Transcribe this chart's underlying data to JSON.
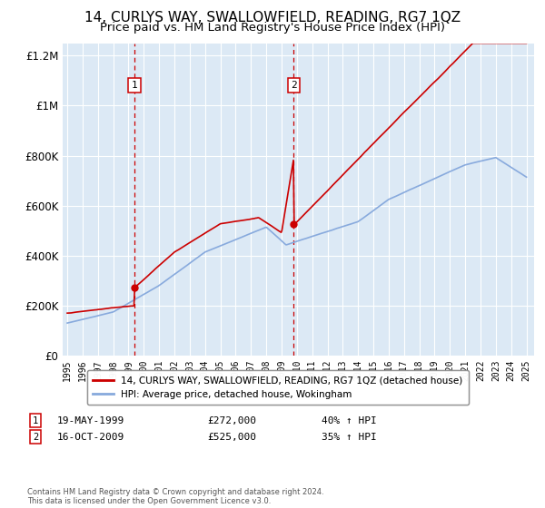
{
  "title": "14, CURLYS WAY, SWALLOWFIELD, READING, RG7 1QZ",
  "subtitle": "Price paid vs. HM Land Registry's House Price Index (HPI)",
  "title_fontsize": 11,
  "subtitle_fontsize": 9.5,
  "background_color": "#ffffff",
  "plot_bg_color": "#dce9f5",
  "grid_color": "#ffffff",
  "ylim": [
    0,
    1250000
  ],
  "yticks": [
    0,
    200000,
    400000,
    600000,
    800000,
    1000000,
    1200000
  ],
  "ytick_labels": [
    "£0",
    "£200K",
    "£400K",
    "£600K",
    "£800K",
    "£1M",
    "£1.2M"
  ],
  "sale1_date_num": 1999.38,
  "sale1_price": 272000,
  "sale2_date_num": 2009.79,
  "sale2_price": 525000,
  "red_line_color": "#cc0000",
  "blue_line_color": "#88aadd",
  "sale_marker_color": "#cc0000",
  "legend_line1": "14, CURLYS WAY, SWALLOWFIELD, READING, RG7 1QZ (detached house)",
  "legend_line2": "HPI: Average price, detached house, Wokingham",
  "annotation1_label": "1",
  "annotation1_date": "19-MAY-1999",
  "annotation1_price": "£272,000",
  "annotation1_hpi": "40% ↑ HPI",
  "annotation2_label": "2",
  "annotation2_date": "16-OCT-2009",
  "annotation2_price": "£525,000",
  "annotation2_hpi": "35% ↑ HPI",
  "footer": "Contains HM Land Registry data © Crown copyright and database right 2024.\nThis data is licensed under the Open Government Licence v3.0.",
  "xlim_min": 1994.7,
  "xlim_max": 2025.5
}
